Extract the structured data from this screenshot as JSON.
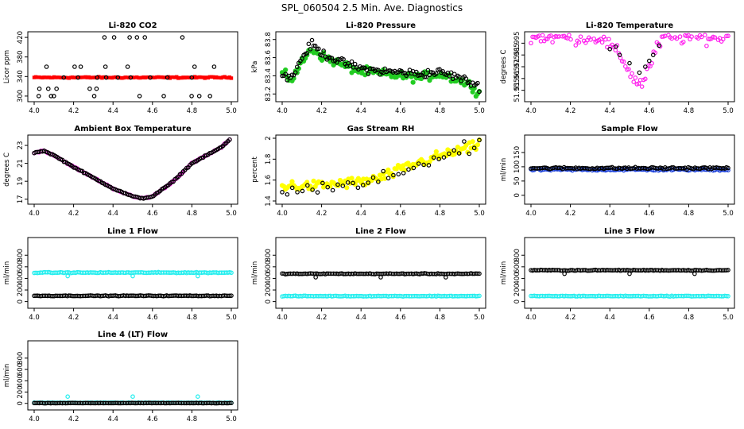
{
  "title": "SPL_060504  2.5 Min. Ave. Diagnostics",
  "colors": {
    "co2": "#ff0000",
    "pressure": "#22cc22",
    "temperature": "#ff22ee",
    "ambient": "#ff22ee",
    "rh": "#ffff00",
    "flow": "#1a3fd9",
    "line": "#22eeee",
    "overlay": "#000000"
  },
  "chart_data": [
    {
      "type": "scatter",
      "title": "Li-820 CO2",
      "xlabel": "",
      "ylabel": "Licor ppm",
      "xlim": [
        4.0,
        5.0
      ],
      "xticks": [
        4.0,
        4.2,
        4.4,
        4.6,
        4.8,
        5.0
      ],
      "ylim": [
        295,
        425
      ],
      "yticks": [
        300,
        340,
        380,
        420
      ],
      "series": [
        {
          "name": "primary",
          "color": "co2",
          "shape": "rect",
          "kind": "flat",
          "base": 338,
          "noise": 1.0,
          "drift": 0
        },
        {
          "name": "overlay",
          "color": "overlay",
          "shape": "ring",
          "kind": "levels",
          "levels": [
            300,
            315,
            338,
            360,
            420
          ]
        }
      ]
    },
    {
      "type": "scatter",
      "title": "Li-820 Pressure",
      "xlabel": "",
      "ylabel": "kPa",
      "xlim": [
        4.0,
        5.0
      ],
      "xticks": [
        4.0,
        4.2,
        4.4,
        4.6,
        4.8,
        5.0
      ],
      "ylim": [
        83.15,
        83.85
      ],
      "yticks": [
        83.2,
        83.4,
        83.6,
        83.8
      ],
      "series": [
        {
          "name": "primary",
          "color": "pressure",
          "shape": "star",
          "kind": "curve",
          "points": [
            [
              4.0,
              83.42
            ],
            [
              4.05,
              83.36
            ],
            [
              4.1,
              83.55
            ],
            [
              4.15,
              83.7
            ],
            [
              4.2,
              83.62
            ],
            [
              4.3,
              83.52
            ],
            [
              4.4,
              83.45
            ],
            [
              4.5,
              83.42
            ],
            [
              4.6,
              83.4
            ],
            [
              4.7,
              83.38
            ],
            [
              4.8,
              83.42
            ],
            [
              4.9,
              83.35
            ],
            [
              4.97,
              83.28
            ],
            [
              5.0,
              83.2
            ]
          ],
          "noise": 0.035
        },
        {
          "name": "overlay",
          "color": "overlay",
          "shape": "ring",
          "kind": "curve",
          "points": [
            [
              4.0,
              83.42
            ],
            [
              4.05,
              83.38
            ],
            [
              4.1,
              83.6
            ],
            [
              4.15,
              83.75
            ],
            [
              4.2,
              83.65
            ],
            [
              4.3,
              83.55
            ],
            [
              4.4,
              83.48
            ],
            [
              4.5,
              83.45
            ],
            [
              4.6,
              83.44
            ],
            [
              4.7,
              83.42
            ],
            [
              4.8,
              83.44
            ],
            [
              4.9,
              83.38
            ],
            [
              5.0,
              83.28
            ]
          ],
          "noise": 0.03
        }
      ]
    },
    {
      "type": "scatter",
      "title": "Li-820 Temperature",
      "xlabel": "",
      "ylabel": "degrees C",
      "xlim": [
        4.0,
        5.0
      ],
      "xticks": [
        4.0,
        4.2,
        4.4,
        4.6,
        4.8,
        5.0
      ],
      "ylim": [
        51.948,
        52.002
      ],
      "yticks": [
        51.955,
        51.965,
        51.975,
        51.985,
        51.995
      ],
      "series": [
        {
          "name": "primary",
          "color": "temperature",
          "shape": "ring",
          "kind": "curve",
          "points": [
            [
              4.0,
              52.0
            ],
            [
              4.35,
              52.0
            ],
            [
              4.42,
              51.99
            ],
            [
              4.47,
              51.98
            ],
            [
              4.52,
              51.965
            ],
            [
              4.56,
              51.96
            ],
            [
              4.6,
              51.975
            ],
            [
              4.65,
              51.995
            ],
            [
              4.68,
              52.0
            ],
            [
              5.0,
              52.0
            ]
          ],
          "noise": 0.004
        },
        {
          "name": "overlay",
          "color": "overlay",
          "shape": "ring",
          "kind": "sparse",
          "points": [
            [
              4.4,
              51.99
            ],
            [
              4.45,
              51.985
            ],
            [
              4.5,
              51.978
            ],
            [
              4.55,
              51.97
            ],
            [
              4.58,
              51.975
            ],
            [
              4.62,
              51.985
            ],
            [
              4.65,
              51.993
            ],
            [
              4.43,
              51.992
            ],
            [
              4.6,
              51.98
            ]
          ]
        }
      ]
    },
    {
      "type": "scatter",
      "title": "Ambient Box Temperature",
      "xlabel": "",
      "ylabel": "degrees C",
      "xlim": [
        4.0,
        5.0
      ],
      "xticks": [
        4.0,
        4.2,
        4.4,
        4.6,
        4.8,
        5.0
      ],
      "ylim": [
        16.8,
        23.8
      ],
      "yticks": [
        17,
        19,
        21,
        23
      ],
      "series": [
        {
          "name": "primary",
          "color": "ambient",
          "shape": "ring",
          "kind": "curve",
          "points": [
            [
              4.0,
              22.2
            ],
            [
              4.05,
              22.4
            ],
            [
              4.1,
              21.9
            ],
            [
              4.2,
              20.6
            ],
            [
              4.3,
              19.4
            ],
            [
              4.4,
              18.2
            ],
            [
              4.5,
              17.3
            ],
            [
              4.55,
              17.1
            ],
            [
              4.6,
              17.3
            ],
            [
              4.7,
              18.9
            ],
            [
              4.8,
              21.0
            ],
            [
              4.9,
              22.2
            ],
            [
              4.95,
              22.8
            ],
            [
              5.0,
              23.8
            ]
          ],
          "noise": 0.05
        },
        {
          "name": "overlay",
          "color": "overlay",
          "shape": "ring",
          "kind": "curve",
          "points": [
            [
              4.0,
              22.2
            ],
            [
              4.05,
              22.4
            ],
            [
              4.1,
              21.9
            ],
            [
              4.2,
              20.6
            ],
            [
              4.3,
              19.4
            ],
            [
              4.4,
              18.2
            ],
            [
              4.5,
              17.3
            ],
            [
              4.55,
              17.1
            ],
            [
              4.6,
              17.3
            ],
            [
              4.7,
              18.9
            ],
            [
              4.8,
              21.0
            ],
            [
              4.9,
              22.2
            ],
            [
              4.95,
              22.8
            ],
            [
              5.0,
              23.8
            ]
          ],
          "noise": 0.04
        }
      ]
    },
    {
      "type": "scatter",
      "title": "Gas Stream RH",
      "xlabel": "",
      "ylabel": "percent",
      "xlim": [
        4.0,
        5.0
      ],
      "xticks": [
        4.0,
        4.2,
        4.4,
        4.6,
        4.8,
        5.0
      ],
      "ylim": [
        1.4,
        2.0
      ],
      "yticks": [
        1.4,
        1.6,
        1.8,
        2.0
      ],
      "series": [
        {
          "name": "primary",
          "color": "rh",
          "shape": "star",
          "kind": "curve",
          "points": [
            [
              4.0,
              1.55
            ],
            [
              4.1,
              1.54
            ],
            [
              4.2,
              1.55
            ],
            [
              4.3,
              1.57
            ],
            [
              4.4,
              1.58
            ],
            [
              4.5,
              1.62
            ],
            [
              4.6,
              1.7
            ],
            [
              4.7,
              1.77
            ],
            [
              4.8,
              1.83
            ],
            [
              4.9,
              1.88
            ],
            [
              5.0,
              1.93
            ]
          ],
          "noise": 0.035
        },
        {
          "name": "overlay",
          "color": "overlay",
          "shape": "ring",
          "kind": "curvesparse",
          "points": [
            [
              4.0,
              1.52
            ],
            [
              4.1,
              1.5
            ],
            [
              4.2,
              1.52
            ],
            [
              4.3,
              1.53
            ],
            [
              4.4,
              1.55
            ],
            [
              4.5,
              1.6
            ],
            [
              4.6,
              1.68
            ],
            [
              4.7,
              1.76
            ],
            [
              4.8,
              1.82
            ],
            [
              4.9,
              1.87
            ],
            [
              5.0,
              1.92
            ]
          ],
          "noise": 0.05
        }
      ]
    },
    {
      "type": "scatter",
      "title": "Sample Flow",
      "xlabel": "",
      "ylabel": "ml/min",
      "xlim": [
        4.0,
        5.0
      ],
      "xticks": [
        4.0,
        4.2,
        4.4,
        4.6,
        4.8,
        5.0
      ],
      "ylim": [
        -20,
        200
      ],
      "yticks": [
        0,
        50,
        100,
        150
      ],
      "series": [
        {
          "name": "primary",
          "color": "flow",
          "shape": "ring",
          "kind": "flat",
          "base": 90,
          "noise": 2.5,
          "drift": 0
        },
        {
          "name": "overlay",
          "color": "overlay",
          "shape": "ring",
          "kind": "flat",
          "base": 95,
          "noise": 2.5,
          "drift": 0
        }
      ]
    },
    {
      "type": "scatter",
      "title": "Line 1 Flow",
      "xlabel": "",
      "ylabel": "ml/min",
      "xlim": [
        4.0,
        5.0
      ],
      "xticks": [
        4.0,
        4.2,
        4.4,
        4.6,
        4.8,
        5.0
      ],
      "ylim": [
        -60,
        1050
      ],
      "yticks": [
        0,
        200,
        400,
        600,
        800
      ],
      "series": [
        {
          "name": "primary",
          "color": "line",
          "shape": "ring",
          "kind": "flat",
          "base": 500,
          "noise": 5,
          "drift": 0,
          "spikes": [
            [
              4.17,
              440
            ],
            [
              4.5,
              440
            ],
            [
              4.83,
              440
            ]
          ]
        },
        {
          "name": "overlay",
          "color": "overlay",
          "shape": "ring",
          "kind": "flat",
          "base": 100,
          "noise": 4,
          "drift": 0
        }
      ]
    },
    {
      "type": "scatter",
      "title": "Line 2 Flow",
      "xlabel": "",
      "ylabel": "ml/min",
      "xlim": [
        4.0,
        5.0
      ],
      "xticks": [
        4.0,
        4.2,
        4.4,
        4.6,
        4.8,
        5.0
      ],
      "ylim": [
        -60,
        1050
      ],
      "yticks": [
        0,
        200,
        400,
        600,
        800
      ],
      "series": [
        {
          "name": "primary",
          "color": "line",
          "shape": "ring",
          "kind": "flat",
          "base": 95,
          "noise": 4,
          "drift": 0
        },
        {
          "name": "overlay",
          "color": "overlay",
          "shape": "ring",
          "kind": "flat",
          "base": 480,
          "noise": 5,
          "drift": 0,
          "spikes": [
            [
              4.17,
              420
            ],
            [
              4.5,
              420
            ],
            [
              4.83,
              420
            ]
          ]
        }
      ]
    },
    {
      "type": "scatter",
      "title": "Line 3 Flow",
      "xlabel": "",
      "ylabel": "ml/min",
      "xlim": [
        4.0,
        5.0
      ],
      "xticks": [
        4.0,
        4.2,
        4.4,
        4.6,
        4.8,
        5.0
      ],
      "ylim": [
        -60,
        1050
      ],
      "yticks": [
        0,
        200,
        400,
        600,
        800
      ],
      "series": [
        {
          "name": "primary",
          "color": "line",
          "shape": "ring",
          "kind": "flat",
          "base": 95,
          "noise": 4,
          "drift": 0
        },
        {
          "name": "overlay",
          "color": "overlay",
          "shape": "ring",
          "kind": "flat",
          "base": 540,
          "noise": 5,
          "drift": 0,
          "spikes": [
            [
              4.17,
              480
            ],
            [
              4.5,
              480
            ],
            [
              4.83,
              480
            ]
          ]
        }
      ]
    },
    {
      "type": "scatter",
      "title": "Line 4 (LT) Flow",
      "xlabel": "",
      "ylabel": "ml/min",
      "xlim": [
        4.0,
        5.0
      ],
      "xticks": [
        4.0,
        4.2,
        4.4,
        4.6,
        4.8,
        5.0
      ],
      "ylim": [
        -60,
        1050
      ],
      "yticks": [
        0,
        200,
        400,
        600,
        800
      ],
      "series": [
        {
          "name": "primary",
          "color": "line",
          "shape": "ring",
          "kind": "flat",
          "base": 10,
          "noise": 2,
          "drift": 0,
          "spikes": [
            [
              4.17,
              120
            ],
            [
              4.5,
              120
            ],
            [
              4.83,
              120
            ]
          ]
        },
        {
          "name": "overlay",
          "color": "overlay",
          "shape": "ring",
          "kind": "flat",
          "base": 5,
          "noise": 2,
          "drift": 0
        }
      ]
    }
  ]
}
